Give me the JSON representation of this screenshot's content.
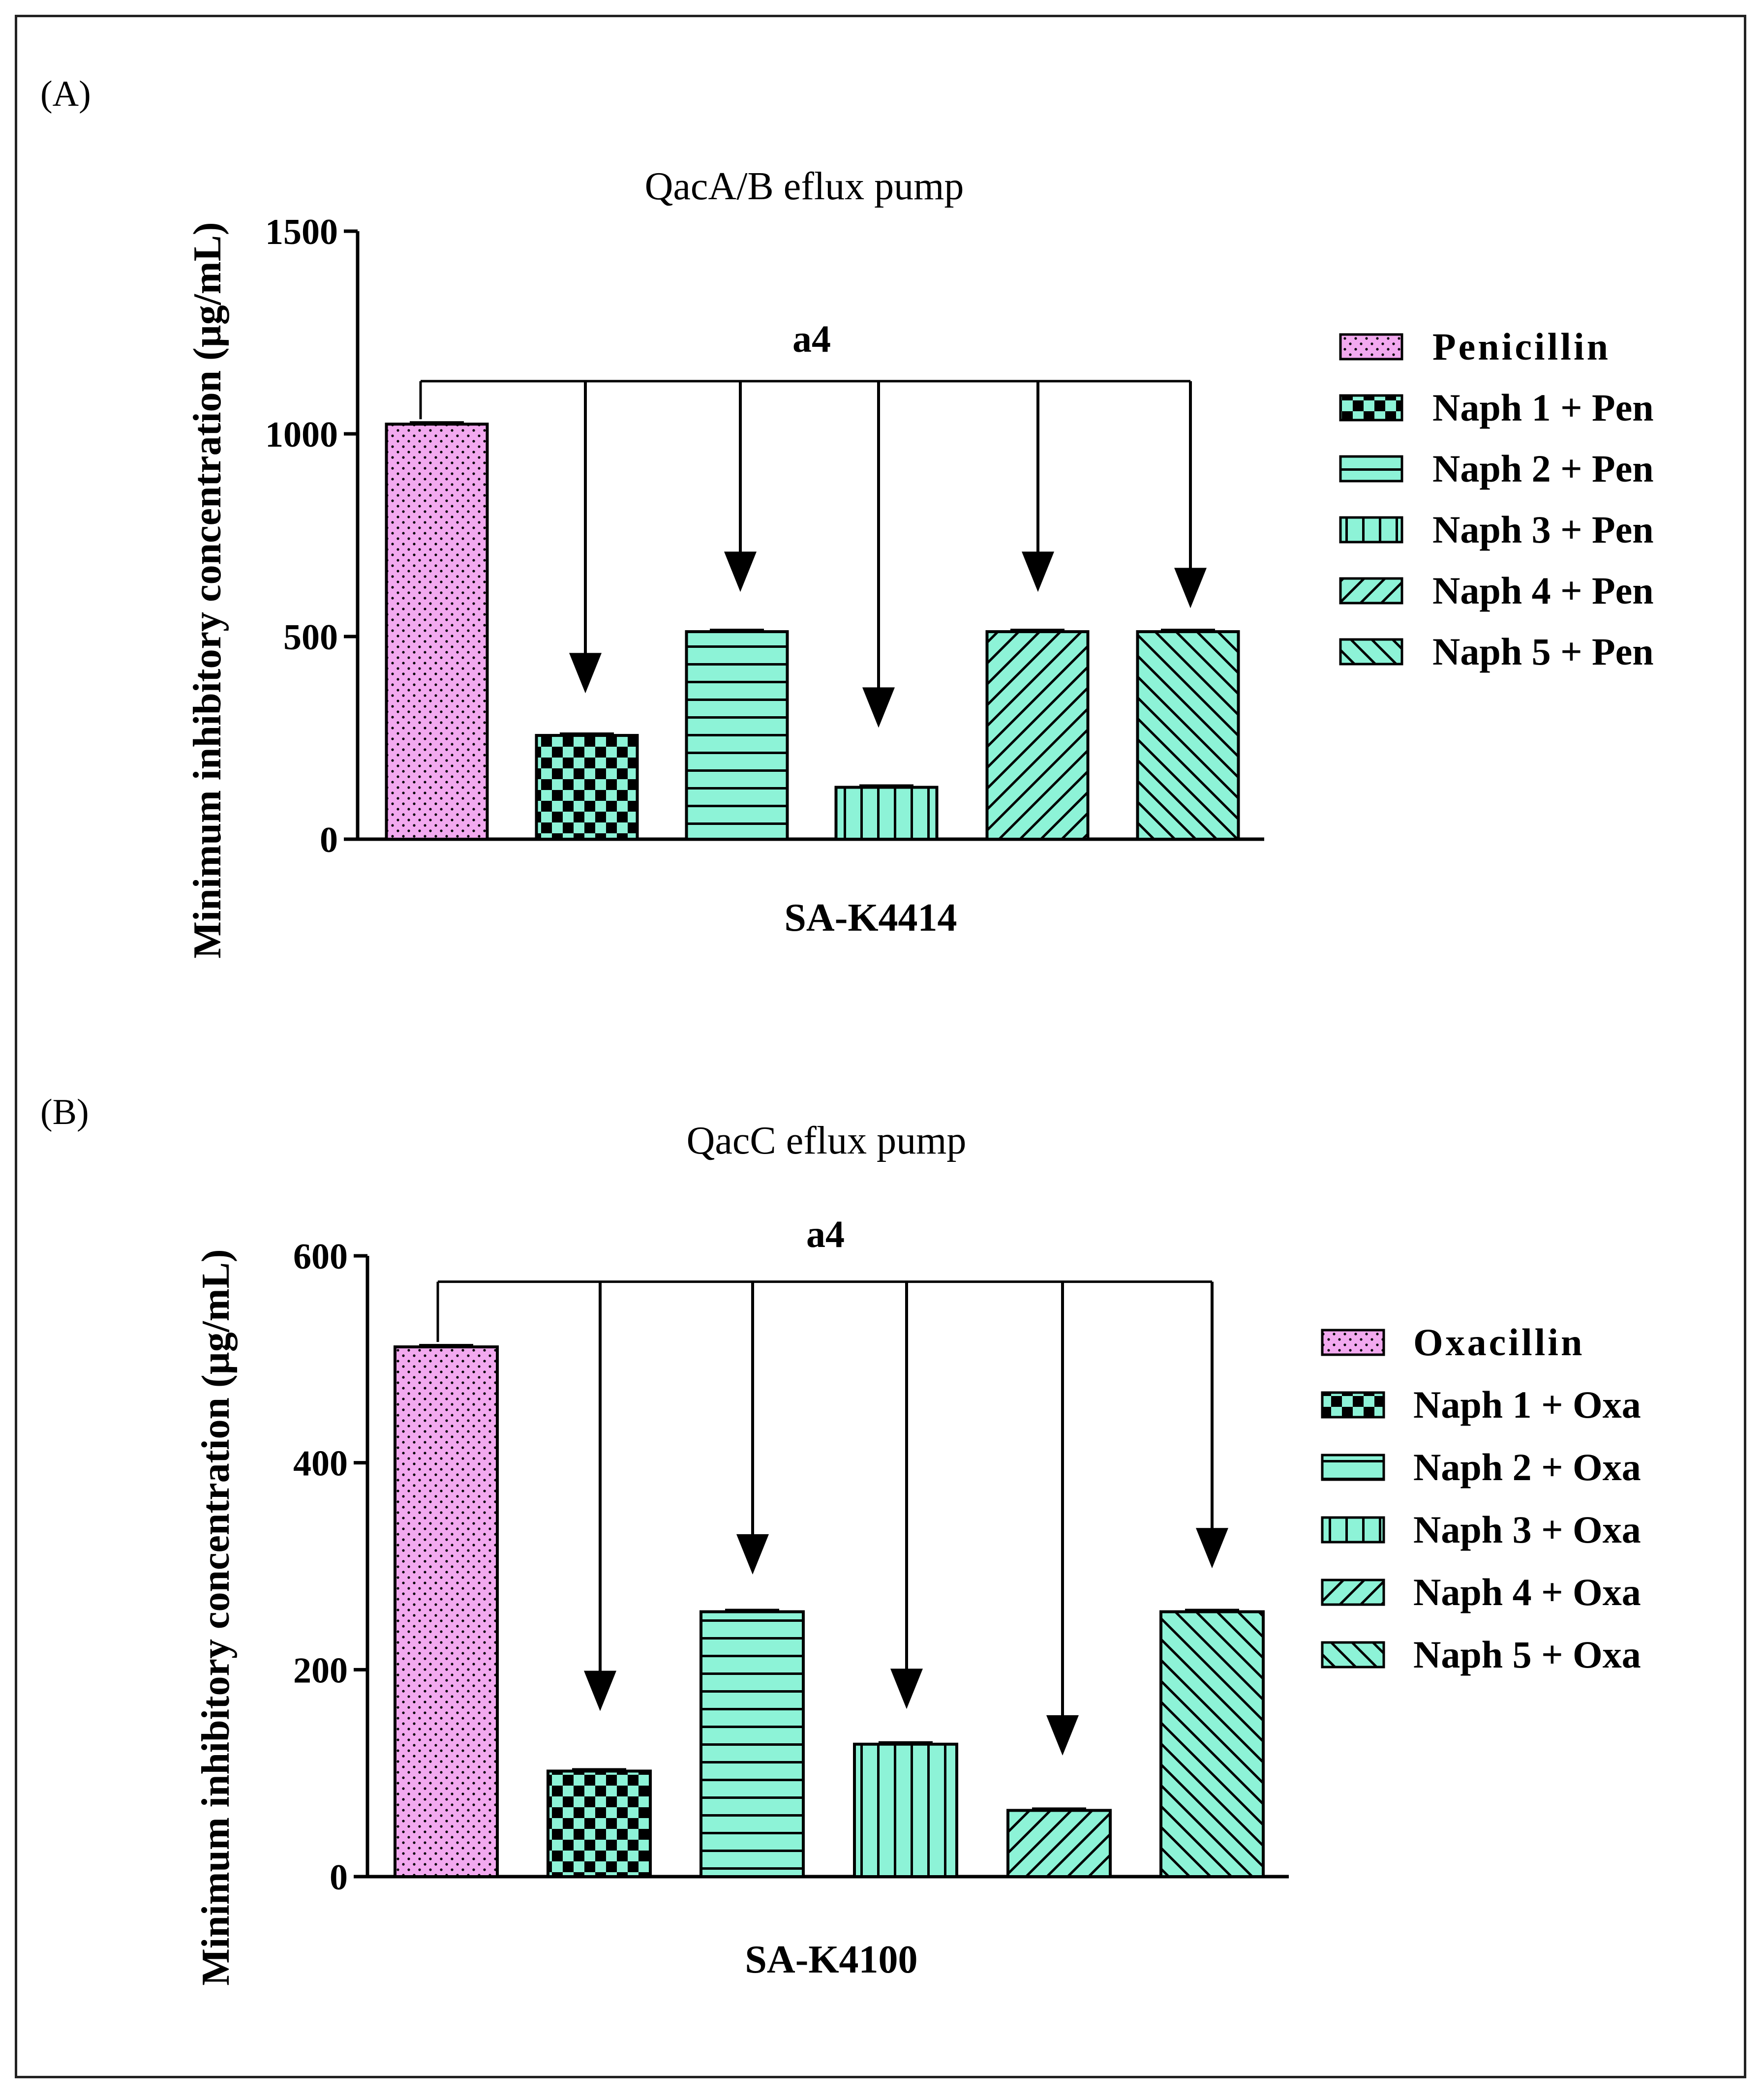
{
  "colors": {
    "penicillin_fill": "#f2a9ef",
    "naph_fill": "#8df3d7",
    "ink": "#000000"
  },
  "chart_data": [
    {
      "panel_label": "(A)",
      "type": "bar",
      "title": "QacA/B eflux pump",
      "xlabel": "SA-K4414",
      "ylabel": "Minimum inhibitory concentration (µg/mL)",
      "ylim": [
        0,
        1500
      ],
      "yticks": [
        0,
        500,
        1000,
        1500
      ],
      "ytick_labels": [
        "0",
        "500",
        "1000",
        "1500"
      ],
      "categories": [
        "Penicillin",
        "Naph 1 + Pen",
        "Naph 2 + Pen",
        "Naph 3 + Pen",
        "Naph 4 + Pen",
        "Naph 5 + Pen"
      ],
      "values": [
        1024,
        256,
        512,
        128,
        512,
        512
      ],
      "patterns": [
        "dots",
        "checker",
        "hlines",
        "vlines",
        "diag-right",
        "diag-left"
      ],
      "significance_label": "a4",
      "bracket_level": 1130,
      "arrow_tip_levels": [
        null,
        360,
        610,
        275,
        610,
        570
      ],
      "legend_position": "right"
    },
    {
      "panel_label": "(B)",
      "type": "bar",
      "title": "QacC eflux pump",
      "xlabel": "SA-K4100",
      "ylabel": "Minimum inhibitory concentration (µg/mL)",
      "ylim": [
        0,
        600
      ],
      "yticks": [
        0,
        200,
        400,
        600
      ],
      "ytick_labels": [
        "0",
        "200",
        "400",
        "600"
      ],
      "categories": [
        "Oxacillin",
        "Naph 1 + Oxa",
        "Naph 2 + Oxa",
        "Naph 3 + Oxa",
        "Naph 4 + Oxa",
        "Naph 5 + Oxa"
      ],
      "values": [
        512,
        102,
        256,
        128,
        64,
        256
      ],
      "patterns": [
        "dots",
        "checker",
        "hlines",
        "vlines",
        "diag-right",
        "diag-left"
      ],
      "significance_label": "a4",
      "bracket_level": 575,
      "arrow_tip_levels": [
        null,
        160,
        292,
        162,
        117,
        298
      ],
      "legend_position": "right"
    }
  ]
}
